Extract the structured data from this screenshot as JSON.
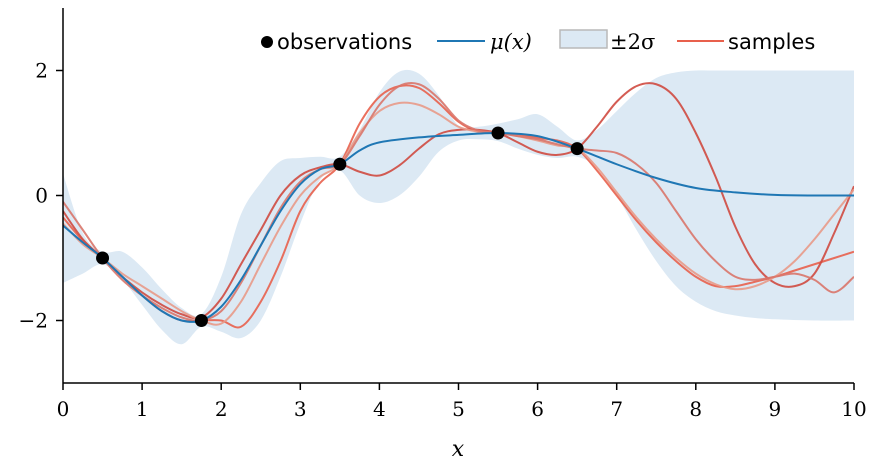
{
  "chart_data": {
    "type": "line",
    "xlabel": "x",
    "ylabel": "",
    "xlim": [
      0,
      10
    ],
    "ylim": [
      -3,
      3
    ],
    "x_ticks": [
      0,
      1,
      2,
      3,
      4,
      5,
      6,
      7,
      8,
      9,
      10
    ],
    "x_tick_labels": [
      "0",
      "1",
      "2",
      "3",
      "4",
      "5",
      "6",
      "7",
      "8",
      "9",
      "10"
    ],
    "y_ticks": [
      -2,
      0,
      2
    ],
    "y_tick_labels": [
      "−2",
      "0",
      "2"
    ],
    "grid": false,
    "legend_position": "top-right",
    "legend": [
      "observations",
      "μ(x)",
      "±2σ",
      "samples"
    ],
    "colors": {
      "observations": "#000000",
      "mean": "#1f77b4",
      "band": "#dce9f4",
      "band_edge": "#b9b9b9",
      "samples": [
        "#e8604c",
        "#cf4a40",
        "#e89a88",
        "#d9766a"
      ]
    },
    "observations": {
      "x": [
        0.5,
        1.75,
        3.5,
        5.5,
        6.5
      ],
      "y": [
        -1.0,
        -2.0,
        0.5,
        1.0,
        0.75
      ]
    },
    "band": {
      "x": [
        0,
        0.25,
        0.5,
        0.75,
        1.0,
        1.25,
        1.5,
        1.75,
        2.0,
        2.25,
        2.5,
        2.75,
        3.0,
        3.25,
        3.5,
        3.75,
        4.0,
        4.25,
        4.5,
        4.75,
        5.0,
        5.25,
        5.5,
        5.75,
        6.0,
        6.25,
        6.5,
        6.75,
        7.0,
        7.25,
        7.5,
        7.75,
        8.0,
        8.25,
        8.5,
        8.75,
        9.0,
        9.5,
        10.0
      ],
      "upper": [
        0.35,
        -0.6,
        -0.9,
        -0.9,
        -1.15,
        -1.5,
        -1.8,
        -1.9,
        -1.3,
        -0.3,
        0.2,
        0.55,
        0.6,
        0.62,
        0.62,
        1.05,
        1.65,
        1.98,
        1.95,
        1.6,
        1.12,
        1.1,
        1.15,
        1.22,
        1.3,
        1.1,
        0.88,
        1.05,
        1.35,
        1.65,
        1.88,
        1.97,
        2.0,
        2.0,
        2.0,
        2.0,
        2.0,
        2.0,
        2.0
      ],
      "lower": [
        -1.4,
        -1.25,
        -1.1,
        -1.35,
        -1.75,
        -2.15,
        -2.38,
        -2.1,
        -2.18,
        -2.28,
        -2.0,
        -1.3,
        -0.45,
        0.25,
        0.4,
        0.0,
        -0.12,
        0.0,
        0.3,
        0.7,
        0.88,
        0.9,
        0.87,
        0.75,
        0.65,
        0.6,
        0.62,
        0.45,
        0.0,
        -0.55,
        -1.05,
        -1.45,
        -1.7,
        -1.85,
        -1.92,
        -1.96,
        -1.98,
        -2.0,
        -2.0
      ]
    },
    "mean": {
      "x": [
        0,
        0.25,
        0.5,
        0.75,
        1.0,
        1.25,
        1.5,
        1.75,
        2.0,
        2.25,
        2.5,
        2.75,
        3.0,
        3.25,
        3.5,
        3.75,
        4.0,
        4.5,
        5.0,
        5.5,
        6.0,
        6.5,
        7.0,
        7.5,
        8.0,
        8.5,
        9.0,
        9.5,
        10.0
      ],
      "y": [
        -0.48,
        -0.75,
        -1.0,
        -1.3,
        -1.6,
        -1.85,
        -2.0,
        -2.0,
        -1.78,
        -1.35,
        -0.8,
        -0.25,
        0.18,
        0.42,
        0.5,
        0.72,
        0.85,
        0.93,
        0.97,
        1.0,
        0.95,
        0.75,
        0.5,
        0.28,
        0.12,
        0.05,
        0.01,
        0.0,
        0.0
      ]
    },
    "series": [
      {
        "x": [
          0,
          0.25,
          0.5,
          0.75,
          1.0,
          1.25,
          1.5,
          1.75,
          2.0,
          2.25,
          2.5,
          2.75,
          3.0,
          3.25,
          3.5,
          3.75,
          4.0,
          4.25,
          4.5,
          4.75,
          5.0,
          5.25,
          5.5,
          5.75,
          6.0,
          6.25,
          6.5,
          6.75,
          7.0,
          7.25,
          7.5,
          7.75,
          8.0,
          8.25,
          8.5,
          8.75,
          9.0,
          9.25,
          9.5,
          9.75,
          10.0
        ],
        "y": [
          -0.35,
          -0.72,
          -1.0,
          -1.3,
          -1.6,
          -1.85,
          -2.0,
          -2.0,
          -2.0,
          -2.1,
          -1.7,
          -1.05,
          -0.25,
          0.2,
          0.5,
          1.15,
          1.58,
          1.75,
          1.72,
          1.48,
          1.18,
          1.02,
          1.0,
          0.98,
          0.92,
          0.88,
          0.75,
          0.4,
          0.0,
          -0.4,
          -0.75,
          -1.05,
          -1.3,
          -1.45,
          -1.45,
          -1.38,
          -1.3,
          -1.2,
          -1.1,
          -1.0,
          -0.9
        ]
      },
      {
        "x": [
          0,
          0.25,
          0.5,
          0.75,
          1.0,
          1.25,
          1.5,
          1.75,
          2.0,
          2.25,
          2.5,
          2.75,
          3.0,
          3.25,
          3.5,
          3.75,
          4.0,
          4.25,
          4.5,
          4.75,
          5.0,
          5.25,
          5.5,
          5.75,
          6.0,
          6.25,
          6.5,
          6.75,
          7.0,
          7.25,
          7.5,
          7.75,
          8.0,
          8.25,
          8.5,
          8.75,
          9.0,
          9.25,
          9.5,
          9.75,
          10.0
        ],
        "y": [
          -0.25,
          -0.7,
          -1.0,
          -1.3,
          -1.55,
          -1.75,
          -1.9,
          -1.95,
          -1.65,
          -1.1,
          -0.55,
          0.0,
          0.32,
          0.45,
          0.5,
          0.38,
          0.32,
          0.48,
          0.75,
          0.98,
          1.05,
          1.05,
          1.0,
          0.85,
          0.7,
          0.65,
          0.75,
          1.1,
          1.5,
          1.75,
          1.78,
          1.55,
          1.0,
          0.3,
          -0.5,
          -1.1,
          -1.4,
          -1.45,
          -1.25,
          -0.6,
          0.15
        ]
      },
      {
        "x": [
          0,
          0.25,
          0.5,
          0.75,
          1.0,
          1.25,
          1.5,
          1.75,
          2.0,
          2.25,
          2.5,
          2.75,
          3.0,
          3.25,
          3.5,
          3.75,
          4.0,
          4.25,
          4.5,
          4.75,
          5.0,
          5.25,
          5.5,
          5.75,
          6.0,
          6.25,
          6.5,
          6.75,
          7.0,
          7.25,
          7.5,
          7.75,
          8.0,
          8.25,
          8.5,
          8.75,
          9.0,
          9.25,
          9.5,
          9.75,
          10.0
        ],
        "y": [
          -0.45,
          -0.78,
          -1.0,
          -1.25,
          -1.45,
          -1.65,
          -1.85,
          -2.0,
          -2.05,
          -1.7,
          -1.1,
          -0.5,
          0.0,
          0.3,
          0.5,
          1.0,
          1.35,
          1.48,
          1.45,
          1.3,
          1.1,
          1.02,
          1.0,
          0.95,
          0.88,
          0.8,
          0.75,
          0.45,
          0.05,
          -0.35,
          -0.7,
          -1.0,
          -1.25,
          -1.42,
          -1.5,
          -1.45,
          -1.3,
          -1.05,
          -0.7,
          -0.3,
          0.1
        ]
      },
      {
        "x": [
          0,
          0.25,
          0.5,
          0.75,
          1.0,
          1.25,
          1.5,
          1.75,
          2.0,
          2.25,
          2.5,
          2.75,
          3.0,
          3.25,
          3.5,
          3.75,
          4.0,
          4.25,
          4.5,
          4.75,
          5.0,
          5.25,
          5.5,
          5.75,
          6.0,
          6.25,
          6.5,
          6.75,
          7.0,
          7.25,
          7.5,
          7.75,
          8.0,
          8.25,
          8.5,
          8.75,
          9.0,
          9.25,
          9.5,
          9.75,
          10.0
        ],
        "y": [
          -0.1,
          -0.55,
          -1.0,
          -1.35,
          -1.6,
          -1.8,
          -1.95,
          -2.0,
          -1.85,
          -1.4,
          -0.8,
          -0.2,
          0.22,
          0.42,
          0.5,
          0.95,
          1.45,
          1.75,
          1.78,
          1.55,
          1.2,
          1.04,
          1.0,
          0.95,
          0.9,
          0.82,
          0.75,
          0.72,
          0.68,
          0.5,
          0.2,
          -0.25,
          -0.7,
          -1.05,
          -1.3,
          -1.35,
          -1.3,
          -1.25,
          -1.35,
          -1.55,
          -1.3
        ]
      }
    ]
  }
}
